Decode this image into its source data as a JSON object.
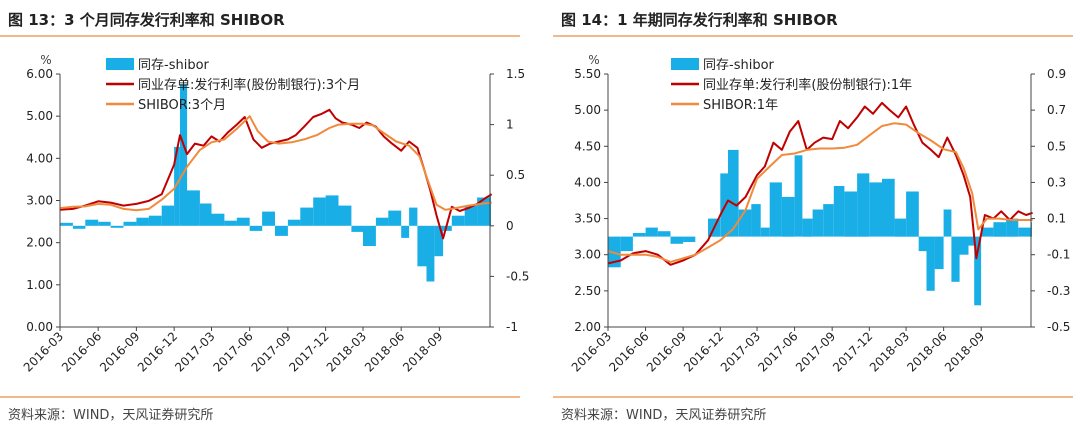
{
  "chart_data": [
    {
      "type": "bar+line",
      "title": "图 13：3 个月同存发行利率和 SHIBOR",
      "source": "资料来源：WIND，天风证券研究所",
      "unit_left": "%",
      "y_left_range": [
        0,
        6
      ],
      "y_left_ticks": [
        "0.00",
        "1.00",
        "2.00",
        "3.00",
        "4.00",
        "5.00",
        "6.00"
      ],
      "y_right_range": [
        -1,
        1.5
      ],
      "y_right_ticks": [
        "-1",
        "-0.5",
        "0",
        "0.5",
        "1",
        "1.5"
      ],
      "x_range": [
        "2016-03",
        "2019-01"
      ],
      "x_ticks": [
        "2016-03",
        "2016-06",
        "2016-09",
        "2016-12",
        "2017-03",
        "2017-06",
        "2017-09",
        "2017-12",
        "2018-03",
        "2018-06",
        "2018-09"
      ],
      "legend": [
        {
          "label": "同存-shibor",
          "color": "#1aaee6"
        },
        {
          "label": "同业存单:发行利率(股份制银行):3个月",
          "color": "#c00000"
        },
        {
          "label": "SHIBOR:3个月",
          "color": "#f08a3c"
        }
      ],
      "series": [
        {
          "name": "同业存单:发行利率(股份制银行):3个月",
          "axis": "left",
          "x": [
            "2016-03-01",
            "2016-04-01",
            "2016-05-01",
            "2016-06-01",
            "2016-07-01",
            "2016-08-01",
            "2016-09-01",
            "2016-10-01",
            "2016-11-01",
            "2016-12-01",
            "2016-12-15",
            "2017-01-01",
            "2017-01-20",
            "2017-02-10",
            "2017-03-01",
            "2017-03-20",
            "2017-04-10",
            "2017-05-01",
            "2017-05-20",
            "2017-06-10",
            "2017-06-30",
            "2017-07-20",
            "2017-08-10",
            "2017-09-01",
            "2017-09-20",
            "2017-10-10",
            "2017-11-01",
            "2017-11-20",
            "2017-12-10",
            "2017-12-25",
            "2018-01-10",
            "2018-02-01",
            "2018-02-20",
            "2018-03-10",
            "2018-04-01",
            "2018-04-20",
            "2018-05-10",
            "2018-06-01",
            "2018-06-20",
            "2018-07-10",
            "2018-07-25",
            "2018-08-10",
            "2018-08-25",
            "2018-09-10",
            "2018-10-01",
            "2018-10-20",
            "2018-11-10",
            "2018-12-01",
            "2018-12-20",
            "2019-01-05"
          ],
          "y": [
            2.78,
            2.8,
            2.88,
            2.98,
            2.95,
            2.88,
            2.92,
            2.99,
            3.15,
            3.85,
            4.55,
            4.1,
            4.35,
            4.3,
            4.52,
            4.4,
            4.62,
            4.8,
            4.98,
            4.45,
            4.25,
            4.35,
            4.4,
            4.45,
            4.55,
            4.75,
            4.98,
            5.05,
            5.15,
            4.95,
            4.85,
            4.8,
            4.72,
            4.85,
            4.75,
            4.52,
            4.35,
            4.18,
            4.4,
            4.25,
            3.78,
            3.25,
            2.65,
            2.1,
            2.85,
            2.75,
            2.82,
            2.92,
            3.05,
            3.15
          ]
        },
        {
          "name": "SHIBOR:3个月",
          "axis": "left",
          "x": [
            "2016-03-01",
            "2016-04-01",
            "2016-05-01",
            "2016-06-01",
            "2016-07-01",
            "2016-08-01",
            "2016-09-01",
            "2016-10-01",
            "2016-11-01",
            "2016-12-01",
            "2017-01-01",
            "2017-02-01",
            "2017-03-01",
            "2017-04-01",
            "2017-05-01",
            "2017-06-01",
            "2017-06-20",
            "2017-07-15",
            "2017-08-10",
            "2017-09-10",
            "2017-10-10",
            "2017-11-10",
            "2017-12-10",
            "2018-01-01",
            "2018-02-01",
            "2018-03-01",
            "2018-03-25",
            "2018-04-20",
            "2018-05-20",
            "2018-06-20",
            "2018-07-15",
            "2018-08-05",
            "2018-08-25",
            "2018-09-15",
            "2018-10-10",
            "2018-11-10",
            "2018-12-10",
            "2019-01-05"
          ],
          "y": [
            2.82,
            2.85,
            2.86,
            2.92,
            2.9,
            2.8,
            2.77,
            2.8,
            3.02,
            3.28,
            3.8,
            4.2,
            4.38,
            4.45,
            4.7,
            5.0,
            4.65,
            4.4,
            4.35,
            4.38,
            4.45,
            4.55,
            4.72,
            4.8,
            4.82,
            4.82,
            4.78,
            4.6,
            4.4,
            4.3,
            4.05,
            3.45,
            2.9,
            2.78,
            2.82,
            2.88,
            2.92,
            2.95
          ]
        },
        {
          "name": "同存-shibor",
          "axis": "right",
          "kind": "bar",
          "x": [
            "2016-03-01",
            "2016-04-01",
            "2016-05-01",
            "2016-06-01",
            "2016-07-01",
            "2016-08-01",
            "2016-09-01",
            "2016-10-01",
            "2016-11-01",
            "2016-12-01",
            "2016-12-15",
            "2017-01-01",
            "2017-02-01",
            "2017-03-01",
            "2017-04-01",
            "2017-05-01",
            "2017-06-01",
            "2017-07-01",
            "2017-08-01",
            "2017-09-01",
            "2017-10-01",
            "2017-11-01",
            "2017-12-01",
            "2018-01-01",
            "2018-02-01",
            "2018-03-01",
            "2018-04-01",
            "2018-05-01",
            "2018-06-01",
            "2018-06-20",
            "2018-07-10",
            "2018-08-01",
            "2018-08-20",
            "2018-09-10",
            "2018-10-01",
            "2018-11-01",
            "2018-12-01",
            "2019-01-01"
          ],
          "y": [
            0.03,
            -0.03,
            0.06,
            0.04,
            -0.02,
            0.04,
            0.08,
            0.1,
            0.2,
            0.78,
            1.4,
            0.35,
            0.22,
            0.12,
            0.05,
            0.08,
            -0.05,
            0.14,
            -0.1,
            0.06,
            0.18,
            0.28,
            0.3,
            0.2,
            -0.06,
            -0.2,
            0.08,
            0.15,
            -0.12,
            0.18,
            -0.4,
            -0.55,
            -0.3,
            -0.05,
            0.1,
            0.2,
            0.28,
            0.32
          ]
        }
      ]
    },
    {
      "type": "bar+line",
      "title": "图 14：1 年期同存发行利率和 SHIBOR",
      "source": "资料来源：WIND，天风证券研究所",
      "unit_left": "%",
      "y_left_range": [
        2,
        5.5
      ],
      "y_left_ticks": [
        "2.00",
        "2.50",
        "3.00",
        "3.50",
        "4.00",
        "4.50",
        "5.00",
        "5.50"
      ],
      "y_right_range": [
        -0.5,
        0.9
      ],
      "y_right_ticks": [
        "-0.5",
        "-0.3",
        "-0.1",
        "0.1",
        "0.3",
        "0.5",
        "0.7",
        "0.9"
      ],
      "x_range": [
        "2016-03",
        "2019-01"
      ],
      "x_ticks": [
        "2016-03",
        "2016-06",
        "2016-09",
        "2016-12",
        "2017-03",
        "2017-06",
        "2017-09",
        "2017-12",
        "2018-03",
        "2018-06",
        "2018-09"
      ],
      "legend": [
        {
          "label": "同存-shibor",
          "color": "#1aaee6"
        },
        {
          "label": "同业存单:发行利率(股份制银行):1年",
          "color": "#c00000"
        },
        {
          "label": "SHIBOR:1年",
          "color": "#f08a3c"
        }
      ],
      "series": [
        {
          "name": "同业存单:发行利率(股份制银行):1年",
          "axis": "left",
          "x": [
            "2016-03-01",
            "2016-04-01",
            "2016-05-01",
            "2016-06-01",
            "2016-07-01",
            "2016-08-01",
            "2016-09-01",
            "2016-10-01",
            "2016-11-01",
            "2016-12-01",
            "2016-12-20",
            "2017-01-10",
            "2017-02-01",
            "2017-03-01",
            "2017-03-20",
            "2017-04-10",
            "2017-05-01",
            "2017-05-20",
            "2017-06-10",
            "2017-07-01",
            "2017-07-20",
            "2017-08-10",
            "2017-09-01",
            "2017-09-20",
            "2017-10-10",
            "2017-11-01",
            "2017-11-20",
            "2017-12-10",
            "2018-01-01",
            "2018-01-20",
            "2018-02-10",
            "2018-03-01",
            "2018-03-20",
            "2018-04-10",
            "2018-05-01",
            "2018-05-20",
            "2018-06-10",
            "2018-07-01",
            "2018-07-20",
            "2018-08-05",
            "2018-08-20",
            "2018-09-10",
            "2018-10-01",
            "2018-10-20",
            "2018-11-10",
            "2018-12-01",
            "2018-12-20",
            "2019-01-05"
          ],
          "y": [
            2.88,
            2.92,
            3.02,
            3.05,
            3.0,
            2.86,
            2.92,
            3.0,
            3.2,
            3.55,
            3.75,
            3.68,
            3.8,
            4.1,
            4.22,
            4.55,
            4.45,
            4.7,
            4.85,
            4.45,
            4.55,
            4.62,
            4.6,
            4.85,
            4.75,
            4.9,
            5.05,
            4.95,
            5.1,
            5.0,
            4.9,
            5.05,
            4.8,
            4.55,
            4.45,
            4.35,
            4.62,
            4.38,
            4.1,
            3.8,
            2.95,
            3.55,
            3.5,
            3.6,
            3.48,
            3.6,
            3.55,
            3.58
          ]
        },
        {
          "name": "SHIBOR:1年",
          "axis": "left",
          "x": [
            "2016-03-01",
            "2016-04-01",
            "2016-05-01",
            "2016-06-01",
            "2016-07-01",
            "2016-08-01",
            "2016-09-01",
            "2016-10-01",
            "2016-11-01",
            "2016-12-01",
            "2017-01-01",
            "2017-02-01",
            "2017-03-01",
            "2017-04-01",
            "2017-05-01",
            "2017-06-01",
            "2017-07-01",
            "2017-08-01",
            "2017-09-01",
            "2017-10-01",
            "2017-11-01",
            "2017-12-01",
            "2018-01-01",
            "2018-02-01",
            "2018-03-01",
            "2018-04-01",
            "2018-05-01",
            "2018-06-01",
            "2018-07-01",
            "2018-07-20",
            "2018-08-10",
            "2018-08-25",
            "2018-09-15",
            "2018-10-15",
            "2018-11-15",
            "2018-12-15",
            "2019-01-05"
          ],
          "y": [
            3.05,
            3.0,
            3.0,
            3.0,
            2.97,
            2.9,
            2.95,
            3.0,
            3.1,
            3.2,
            3.35,
            3.62,
            4.05,
            4.22,
            4.38,
            4.4,
            4.45,
            4.47,
            4.47,
            4.48,
            4.52,
            4.65,
            4.78,
            4.82,
            4.8,
            4.68,
            4.58,
            4.46,
            4.42,
            4.2,
            3.85,
            3.35,
            3.5,
            3.5,
            3.48,
            3.48,
            3.48
          ]
        },
        {
          "name": "同存-shibor",
          "axis": "right",
          "kind": "bar",
          "x": [
            "2016-03-01",
            "2016-04-01",
            "2016-05-01",
            "2016-06-01",
            "2016-07-01",
            "2016-08-01",
            "2016-09-01",
            "2016-10-01",
            "2016-11-01",
            "2016-12-01",
            "2016-12-20",
            "2017-01-15",
            "2017-02-15",
            "2017-03-10",
            "2017-04-01",
            "2017-05-01",
            "2017-06-01",
            "2017-06-20",
            "2017-07-15",
            "2017-08-10",
            "2017-09-05",
            "2017-10-01",
            "2017-11-01",
            "2017-12-01",
            "2018-01-01",
            "2018-02-01",
            "2018-03-01",
            "2018-04-01",
            "2018-04-20",
            "2018-05-10",
            "2018-06-01",
            "2018-06-20",
            "2018-07-10",
            "2018-08-01",
            "2018-08-15",
            "2018-09-01",
            "2018-10-01",
            "2018-11-01",
            "2018-12-01",
            "2019-01-01"
          ],
          "y": [
            -0.17,
            -0.08,
            0.02,
            0.05,
            0.03,
            -0.04,
            -0.03,
            0.0,
            0.1,
            0.35,
            0.48,
            0.15,
            0.18,
            0.05,
            0.3,
            0.22,
            0.45,
            0.1,
            0.15,
            0.18,
            0.28,
            0.25,
            0.35,
            0.3,
            0.32,
            0.1,
            0.25,
            -0.08,
            -0.3,
            -0.18,
            0.15,
            -0.25,
            -0.1,
            -0.05,
            -0.38,
            0.05,
            0.08,
            0.1,
            0.05,
            0.08
          ]
        }
      ]
    }
  ]
}
